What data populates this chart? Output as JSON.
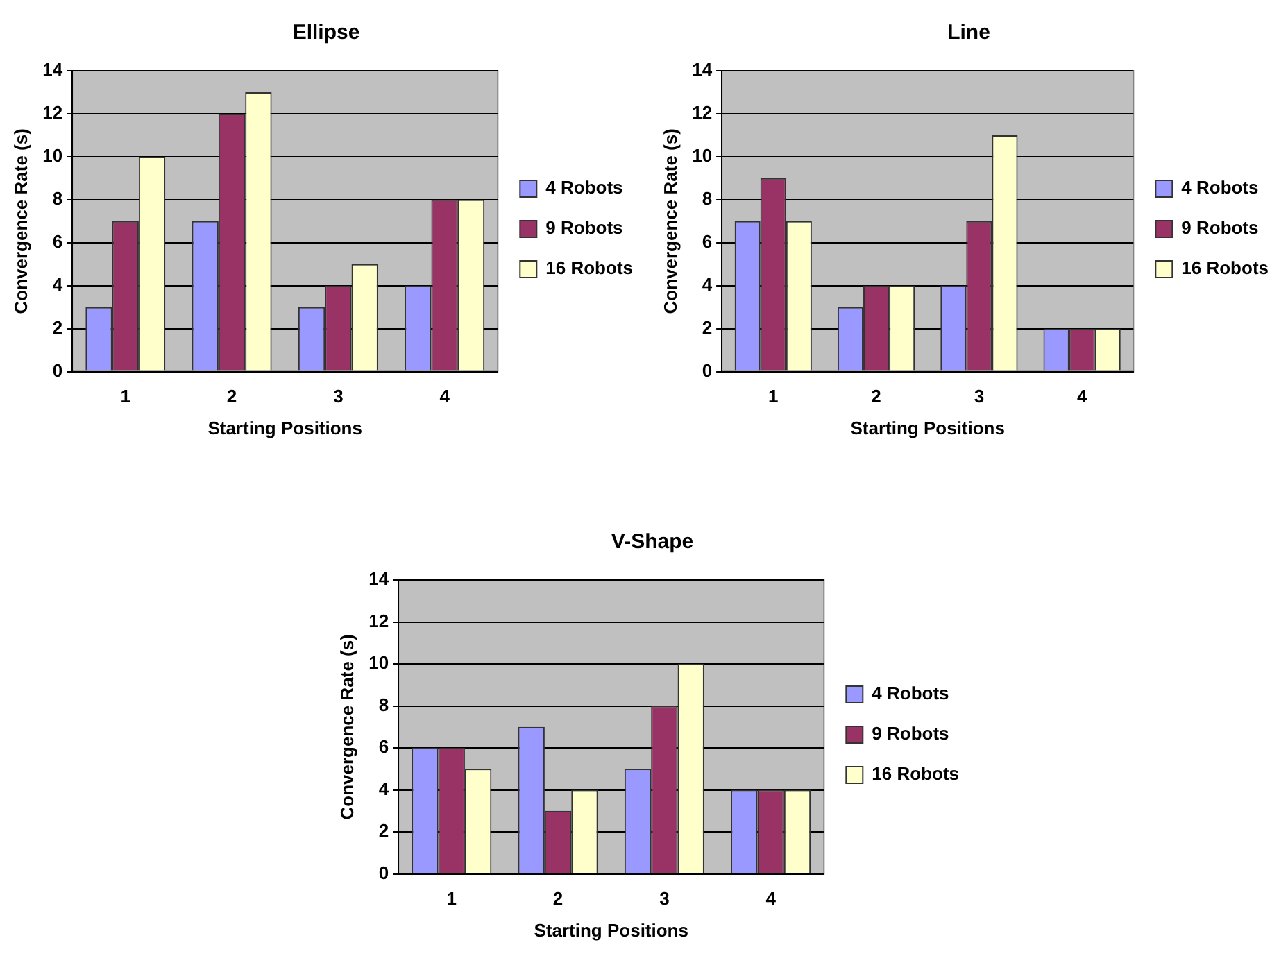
{
  "chart_data": [
    {
      "type": "bar",
      "title": "Ellipse",
      "xlabel": "Starting Positions",
      "ylabel": "Convergence Rate (s)",
      "categories": [
        "1",
        "2",
        "3",
        "4"
      ],
      "series": [
        {
          "name": "4 Robots",
          "color": "#9999ff",
          "values": [
            3,
            7,
            3,
            4
          ]
        },
        {
          "name": "9 Robots",
          "color": "#993366",
          "values": [
            7,
            12,
            4,
            8
          ]
        },
        {
          "name": "16 Robots",
          "color": "#ffffcc",
          "values": [
            10,
            13,
            5,
            8
          ]
        }
      ],
      "ylim": [
        0,
        14
      ],
      "yticks": [
        0,
        2,
        4,
        6,
        8,
        10,
        12,
        14
      ],
      "grid": "y",
      "legend": "right"
    },
    {
      "type": "bar",
      "title": "Line",
      "xlabel": "Starting Positions",
      "ylabel": "Convergence Rate (s)",
      "categories": [
        "1",
        "2",
        "3",
        "4"
      ],
      "series": [
        {
          "name": "4 Robots",
          "color": "#9999ff",
          "values": [
            7,
            3,
            4,
            2
          ]
        },
        {
          "name": "9 Robots",
          "color": "#993366",
          "values": [
            9,
            4,
            7,
            2
          ]
        },
        {
          "name": "16 Robots",
          "color": "#ffffcc",
          "values": [
            7,
            4,
            11,
            2
          ]
        }
      ],
      "ylim": [
        0,
        14
      ],
      "yticks": [
        0,
        2,
        4,
        6,
        8,
        10,
        12,
        14
      ],
      "grid": "y",
      "legend": "right"
    },
    {
      "type": "bar",
      "title": "V-Shape",
      "xlabel": "Starting Positions",
      "ylabel": "Convergence Rate (s)",
      "categories": [
        "1",
        "2",
        "3",
        "4"
      ],
      "series": [
        {
          "name": "4 Robots",
          "color": "#9999ff",
          "values": [
            6,
            7,
            5,
            4
          ]
        },
        {
          "name": "9 Robots",
          "color": "#993366",
          "values": [
            6,
            3,
            8,
            4
          ]
        },
        {
          "name": "16 Robots",
          "color": "#ffffcc",
          "values": [
            5,
            4,
            10,
            4
          ]
        }
      ],
      "ylim": [
        0,
        14
      ],
      "yticks": [
        0,
        2,
        4,
        6,
        8,
        10,
        12,
        14
      ],
      "grid": "y",
      "legend": "right"
    }
  ]
}
